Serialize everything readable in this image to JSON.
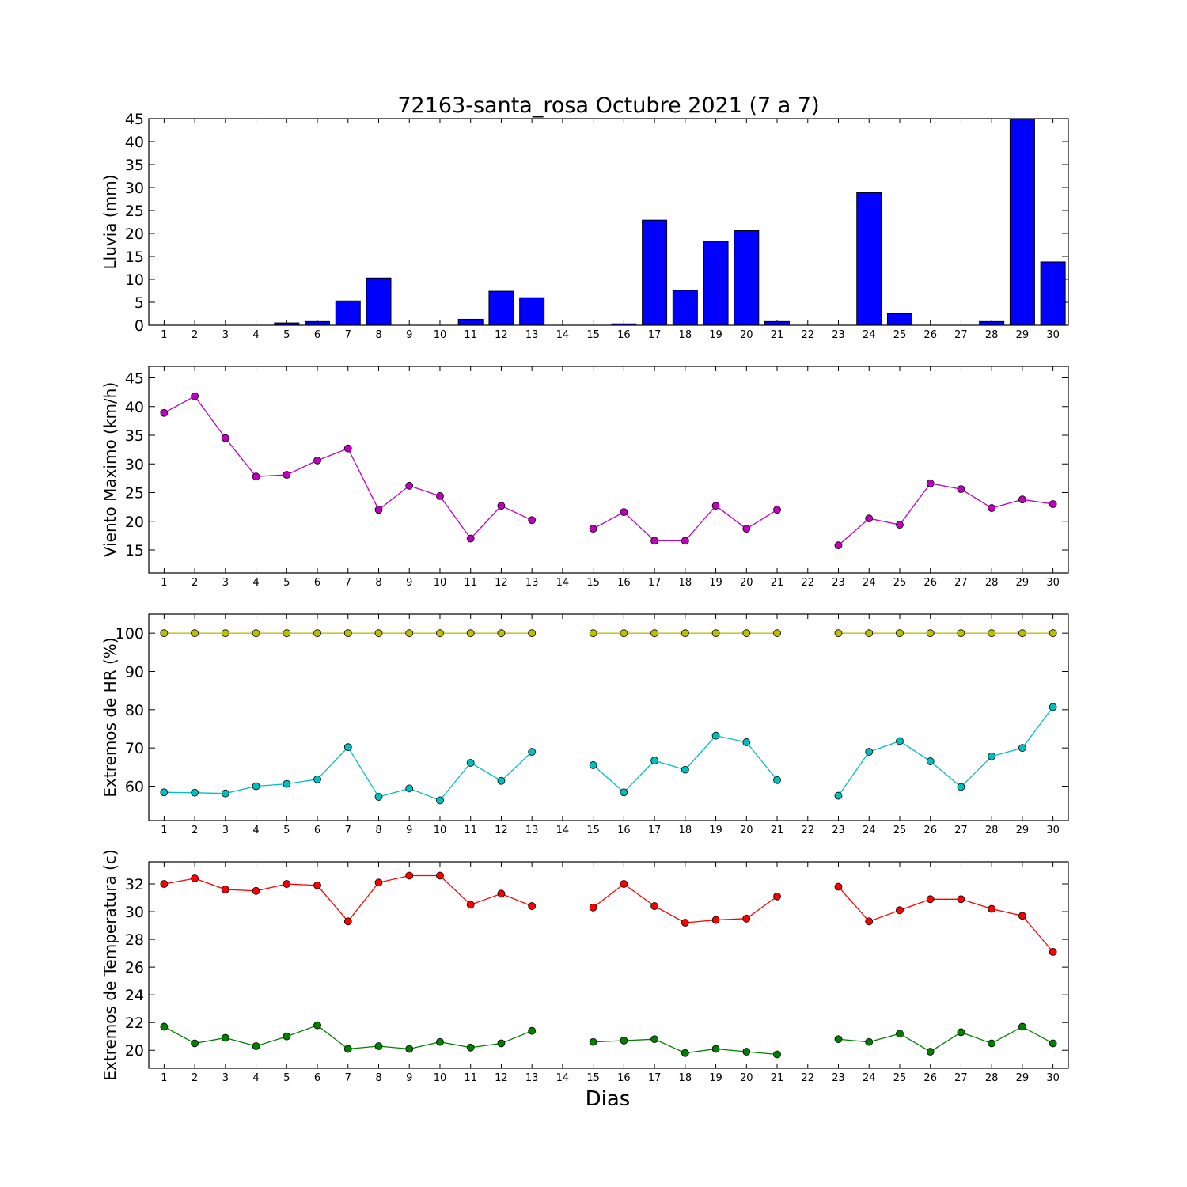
{
  "title": "72163-santa_rosa Octubre 2021  (7 a 7)",
  "xlabel": "Dias",
  "days": [
    1,
    2,
    3,
    4,
    5,
    6,
    7,
    8,
    9,
    10,
    11,
    12,
    13,
    14,
    15,
    16,
    17,
    18,
    19,
    20,
    21,
    22,
    23,
    24,
    25,
    26,
    27,
    28,
    29,
    30
  ],
  "colors": {
    "rain": "#0000ff",
    "wind": "#bf00bf",
    "hr_max": "#bfbf00",
    "hr_min": "#00bfbf",
    "temp_max": "#ff0000",
    "temp_min": "#008000"
  },
  "chart_data": [
    {
      "type": "bar",
      "ylabel": "Lluvia (mm)",
      "ylim": [
        0,
        45
      ],
      "yticks": [
        0,
        5,
        10,
        15,
        20,
        25,
        30,
        35,
        40,
        45
      ],
      "categories": [
        1,
        2,
        3,
        4,
        5,
        6,
        7,
        8,
        9,
        10,
        11,
        12,
        13,
        14,
        15,
        16,
        17,
        18,
        19,
        20,
        21,
        22,
        23,
        24,
        25,
        26,
        27,
        28,
        29,
        30
      ],
      "values": [
        0,
        0,
        0,
        0,
        0.5,
        0.8,
        5.3,
        10.3,
        0,
        0,
        1.3,
        7.4,
        6.0,
        0,
        0,
        0.3,
        22.9,
        7.6,
        18.3,
        20.6,
        0.8,
        0,
        0,
        28.9,
        2.5,
        0,
        0,
        0.8,
        45.0,
        13.8
      ]
    },
    {
      "type": "line",
      "ylabel": "Viento Maximo (km/h)",
      "ylim": [
        11,
        47
      ],
      "yticks": [
        15,
        20,
        25,
        30,
        35,
        40,
        45
      ],
      "x": [
        1,
        2,
        3,
        4,
        5,
        6,
        7,
        8,
        9,
        10,
        11,
        12,
        13,
        14,
        15,
        16,
        17,
        18,
        19,
        20,
        21,
        22,
        23,
        24,
        25,
        26,
        27,
        28,
        29,
        30
      ],
      "series": [
        {
          "values": [
            38.9,
            41.8,
            34.5,
            27.8,
            28.1,
            30.6,
            32.7,
            22.0,
            26.2,
            24.4,
            17.0,
            22.7,
            20.2,
            null,
            18.7,
            21.6,
            16.6,
            16.6,
            22.7,
            18.7,
            22.0,
            null,
            15.8,
            20.5,
            19.4,
            26.6,
            25.6,
            22.3,
            23.8,
            23.0
          ]
        }
      ]
    },
    {
      "type": "line",
      "ylabel": "Extremos de HR (%)",
      "ylim": [
        51,
        105
      ],
      "yticks": [
        60,
        70,
        80,
        90,
        100
      ],
      "x": [
        1,
        2,
        3,
        4,
        5,
        6,
        7,
        8,
        9,
        10,
        11,
        12,
        13,
        14,
        15,
        16,
        17,
        18,
        19,
        20,
        21,
        22,
        23,
        24,
        25,
        26,
        27,
        28,
        29,
        30
      ],
      "series": [
        {
          "values": [
            100,
            100,
            100,
            100,
            100,
            100,
            100,
            100,
            100,
            100,
            100,
            100,
            100,
            null,
            100,
            100,
            100,
            100,
            100,
            100,
            100,
            null,
            100,
            100,
            100,
            100,
            100,
            100,
            100,
            100
          ]
        },
        {
          "values": [
            58.4,
            58.3,
            58.1,
            60.0,
            60.6,
            61.8,
            70.2,
            57.2,
            59.4,
            56.3,
            66.1,
            61.4,
            69.0,
            null,
            65.5,
            58.4,
            66.7,
            64.3,
            73.2,
            71.5,
            61.6,
            null,
            57.5,
            69.0,
            71.8,
            66.5,
            59.8,
            67.8,
            70.0,
            80.7
          ]
        }
      ]
    },
    {
      "type": "line",
      "ylabel": "Extremos de Temperatura (c)",
      "ylim": [
        18.7,
        33.6
      ],
      "yticks": [
        20,
        22,
        24,
        26,
        28,
        30,
        32
      ],
      "x": [
        1,
        2,
        3,
        4,
        5,
        6,
        7,
        8,
        9,
        10,
        11,
        12,
        13,
        14,
        15,
        16,
        17,
        18,
        19,
        20,
        21,
        22,
        23,
        24,
        25,
        26,
        27,
        28,
        29,
        30
      ],
      "series": [
        {
          "values": [
            32.0,
            32.4,
            31.6,
            31.5,
            32.0,
            31.9,
            29.3,
            32.1,
            32.6,
            32.6,
            30.5,
            31.3,
            30.4,
            null,
            30.3,
            32.0,
            30.4,
            29.2,
            29.4,
            29.5,
            31.1,
            null,
            31.8,
            29.3,
            30.1,
            30.9,
            30.9,
            30.2,
            29.7,
            27.1
          ]
        },
        {
          "values": [
            21.7,
            20.5,
            20.9,
            20.3,
            21.0,
            21.8,
            20.1,
            20.3,
            20.1,
            20.6,
            20.2,
            20.5,
            21.4,
            null,
            20.6,
            20.7,
            20.8,
            19.8,
            20.1,
            19.9,
            19.7,
            null,
            20.8,
            20.6,
            21.2,
            19.9,
            21.3,
            20.5,
            21.7,
            20.5
          ]
        }
      ]
    }
  ]
}
